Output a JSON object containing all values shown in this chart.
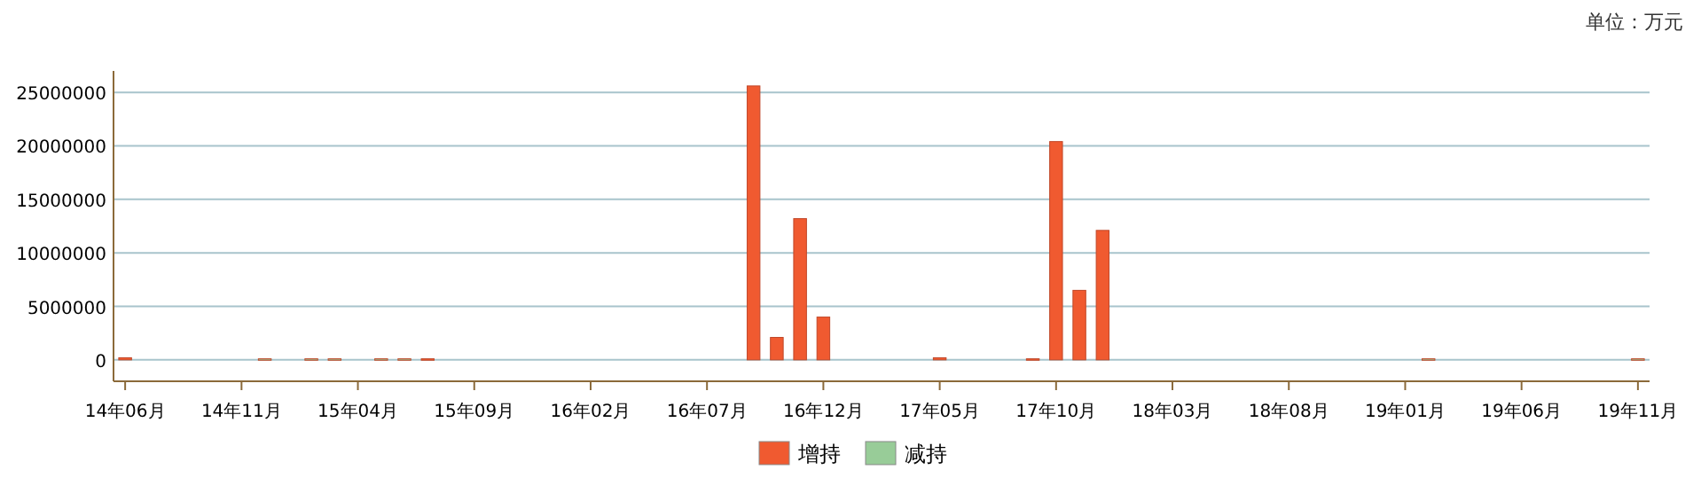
{
  "chart_data": {
    "type": "bar",
    "categories": [
      "14年06月",
      null,
      null,
      null,
      null,
      "14年11月",
      null,
      null,
      null,
      null,
      "15年04月",
      null,
      null,
      null,
      null,
      "15年09月",
      null,
      null,
      null,
      null,
      "16年02月",
      null,
      null,
      null,
      null,
      "16年07月",
      null,
      null,
      null,
      null,
      "16年12月",
      null,
      null,
      null,
      null,
      "17年05月",
      null,
      null,
      null,
      null,
      "17年10月",
      null,
      null,
      null,
      null,
      "18年03月",
      null,
      null,
      null,
      null,
      "18年08月",
      null,
      null,
      null,
      null,
      "19年01月",
      null,
      null,
      null,
      null,
      "19年06月",
      null,
      null,
      null,
      null,
      "19年11月"
    ],
    "series": [
      {
        "name": "增持",
        "color": "#f05a30",
        "values": [
          200000,
          null,
          null,
          null,
          null,
          null,
          null,
          null,
          null,
          null,
          null,
          null,
          null,
          100000,
          null,
          null,
          null,
          null,
          null,
          null,
          null,
          null,
          null,
          null,
          null,
          null,
          null,
          25600000,
          2100000,
          13200000,
          4000000,
          null,
          null,
          null,
          null,
          200000,
          null,
          null,
          null,
          100000,
          20400000,
          6500000,
          12100000,
          null,
          null,
          null,
          null,
          null,
          null,
          null,
          null,
          null,
          null,
          null,
          null,
          null,
          null,
          null,
          null,
          null,
          null,
          null,
          null,
          null,
          null,
          null
        ]
      },
      {
        "name": "减持",
        "color": "#98cc98",
        "values": [
          null,
          null,
          null,
          null,
          null,
          null,
          100000,
          null,
          100000,
          100000,
          null,
          100000,
          100000,
          null,
          null,
          null,
          null,
          null,
          null,
          null,
          null,
          null,
          null,
          null,
          null,
          null,
          null,
          null,
          null,
          null,
          null,
          null,
          null,
          null,
          null,
          null,
          null,
          null,
          null,
          null,
          null,
          null,
          null,
          null,
          null,
          null,
          null,
          null,
          null,
          null,
          null,
          null,
          null,
          null,
          null,
          null,
          100000,
          null,
          null,
          null,
          null,
          null,
          null,
          null,
          null,
          100000
        ]
      }
    ],
    "ylim": [
      -2000000,
      27000000
    ],
    "yticks": [
      0,
      5000000,
      10000000,
      15000000,
      20000000,
      25000000
    ],
    "grid": "y",
    "legend": "bottom",
    "annotations": [
      "单位：万元"
    ]
  }
}
